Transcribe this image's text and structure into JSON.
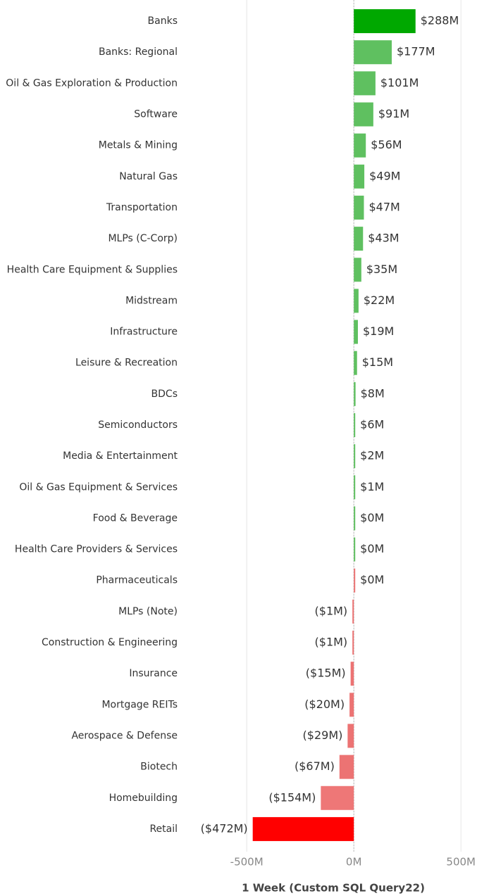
{
  "chart_data": {
    "type": "bar",
    "orientation": "horizontal",
    "x_label": "1 Week (Custom SQL Query22)",
    "categories": [
      "Banks",
      "Banks: Regional",
      "Oil & Gas Exploration & Production",
      "Software",
      "Metals & Mining",
      "Natural Gas",
      "Transportation",
      "MLPs (C-Corp)",
      "Health Care Equipment & Supplies",
      "Midstream",
      "Infrastructure",
      "Leisure & Recreation",
      "BDCs",
      "Semiconductors",
      "Media & Entertainment",
      "Oil & Gas Equipment & Services",
      "Food & Beverage",
      "Health Care Providers & Services",
      "Pharmaceuticals",
      "MLPs (Note)",
      "Construction & Engineering",
      "Insurance",
      "Mortgage REITs",
      "Aerospace & Defense",
      "Biotech",
      "Homebuilding",
      "Retail"
    ],
    "values": [
      288,
      177,
      101,
      91,
      56,
      49,
      47,
      43,
      35,
      22,
      19,
      15,
      8,
      6,
      2,
      1,
      0.3,
      0.2,
      0,
      -1,
      -1,
      -15,
      -20,
      -29,
      -67,
      -154,
      -472
    ],
    "value_labels": [
      "$288M",
      "$177M",
      "$101M",
      "$91M",
      "$56M",
      "$49M",
      "$47M",
      "$43M",
      "$35M",
      "$22M",
      "$19M",
      "$15M",
      "$8M",
      "$6M",
      "$2M",
      "$1M",
      "$0M",
      "$0M",
      "$0M",
      "($1M)",
      "($1M)",
      "($15M)",
      "($20M)",
      "($29M)",
      "($67M)",
      "($154M)",
      "($472M)"
    ],
    "colors": [
      "#00a800",
      "#5fc060",
      "#5fc060",
      "#5fc060",
      "#5fc060",
      "#5fc060",
      "#5fc060",
      "#5fc060",
      "#5fc060",
      "#5fc060",
      "#5fc060",
      "#5fc060",
      "#5fc060",
      "#5fc060",
      "#5fc060",
      "#5fc060",
      "#5fc060",
      "#5fc060",
      "#ec7373",
      "#ec7373",
      "#ec7373",
      "#ec7373",
      "#ec7373",
      "#ec7373",
      "#ec7373",
      "#ee7777",
      "#ff0000"
    ],
    "xlim": [
      -790,
      575
    ],
    "xticks": [
      {
        "value": -500,
        "label": "-500M"
      },
      {
        "value": 0,
        "label": "0M"
      },
      {
        "value": 500,
        "label": "500M"
      }
    ],
    "grid": true
  }
}
